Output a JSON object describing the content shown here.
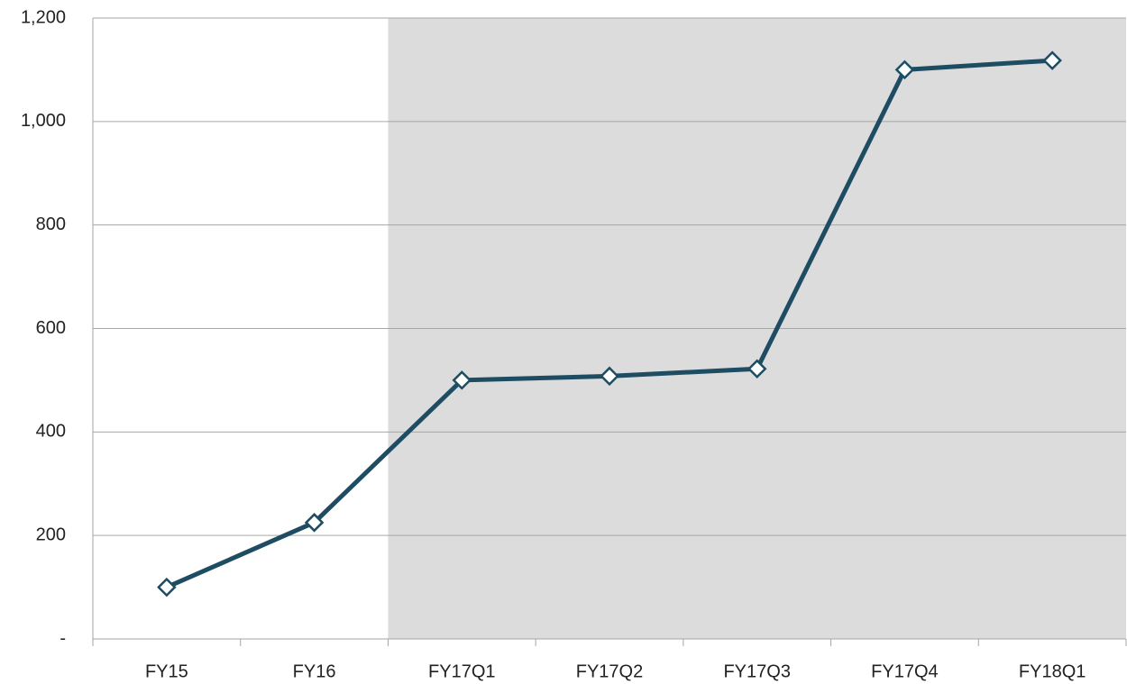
{
  "chart_data": {
    "type": "line",
    "categories": [
      "FY15",
      "FY16",
      "FY17Q1",
      "FY17Q2",
      "FY17Q3",
      "FY17Q4",
      "FY18Q1"
    ],
    "series": [
      {
        "color": "#1e4d63",
        "values": [
          100,
          225,
          500,
          508,
          522,
          1100,
          1118
        ]
      }
    ],
    "ylim": [
      0,
      1200
    ],
    "yticks": [
      {
        "value": 0,
        "label": "-"
      },
      200,
      400,
      600,
      800,
      {
        "value": 1000,
        "label": "1,000"
      },
      {
        "value": 1200,
        "label": "1,200"
      }
    ],
    "grid": true,
    "marker": "diamond",
    "shaded_from": "FY17Q1",
    "shade_color": "#dcdcdc"
  }
}
